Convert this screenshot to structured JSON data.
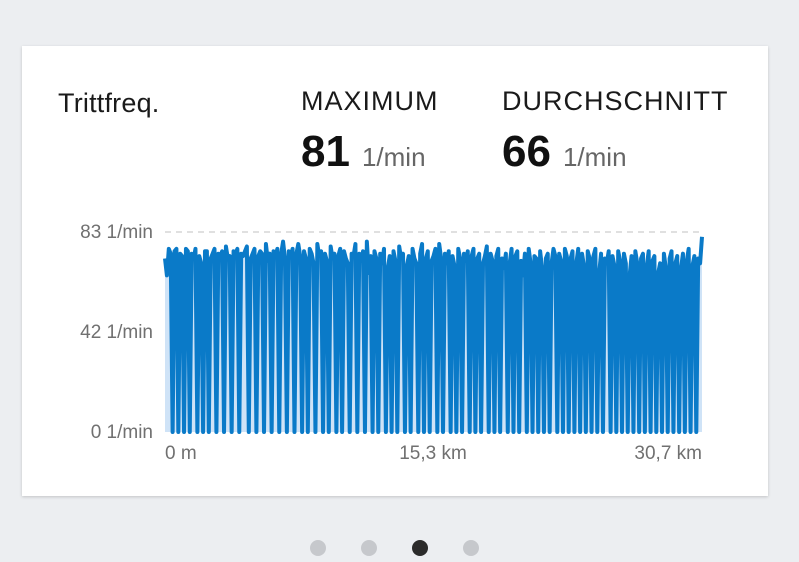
{
  "card": {
    "title": "Trittfreq.",
    "maximum": {
      "label": "MAXIMUM",
      "value": "81",
      "unit": "1/min"
    },
    "average": {
      "label": "DURCHSCHNITT",
      "value": "66",
      "unit": "1/min"
    }
  },
  "chart_data": {
    "type": "area",
    "y_tick_labels": [
      "83 1/min",
      "42 1/min",
      "0 1/min"
    ],
    "x_tick_labels": [
      "0 m",
      "15,3 km",
      "30,7 km"
    ],
    "ylim": [
      0,
      83
    ],
    "xlim_km": [
      0,
      30.7
    ],
    "grid": "dashed top line",
    "colors": {
      "line": "#0a7ac8",
      "fill": "#cfe3f7"
    },
    "series": [
      {
        "values": [
          72,
          65,
          76,
          74,
          0,
          75,
          76,
          0,
          74,
          73,
          0,
          76,
          75,
          0,
          74,
          72,
          76,
          0,
          73,
          70,
          0,
          75,
          75,
          0,
          72,
          74,
          76,
          0,
          74,
          73,
          75,
          0,
          77,
          72,
          73,
          0,
          75,
          74,
          76,
          0,
          74,
          73,
          75,
          77,
          0,
          72,
          74,
          76,
          0,
          73,
          75,
          74,
          0,
          78,
          71,
          74,
          0,
          75,
          73,
          76,
          0,
          74,
          79,
          72,
          0,
          75,
          73,
          76,
          0,
          74,
          78,
          73,
          0,
          75,
          72,
          0,
          76,
          74,
          70,
          0,
          78,
          73,
          75,
          0,
          74,
          71,
          0,
          77,
          72,
          74,
          0,
          73,
          76,
          0,
          75,
          72,
          70,
          0,
          74,
          73,
          78,
          0,
          74,
          71,
          75,
          0,
          79,
          66,
          73,
          0,
          75,
          72,
          0,
          74,
          70,
          76,
          0,
          68,
          73,
          0,
          75,
          71,
          0,
          77,
          72,
          74,
          0,
          69,
          73,
          0,
          76,
          72,
          70,
          0,
          74,
          78,
          0,
          72,
          75,
          0,
          71,
          73,
          76,
          0,
          78,
          72,
          0,
          74,
          70,
          75,
          0,
          73,
          69,
          0,
          76,
          72,
          0,
          74,
          71,
          75,
          0,
          73,
          76,
          0,
          72,
          74,
          0,
          70,
          73,
          77,
          0,
          74,
          71,
          0,
          73,
          76,
          0,
          72,
          68,
          74,
          0,
          70,
          76,
          0,
          73,
          75,
          0,
          71,
          65,
          74,
          0,
          76,
          70,
          0,
          73,
          72,
          0,
          75,
          68,
          0,
          72,
          74,
          0,
          70,
          76,
          73,
          0,
          74,
          71,
          0,
          76,
          73,
          0,
          72,
          75,
          0,
          70,
          76,
          0,
          74,
          69,
          0,
          75,
          72,
          0,
          73,
          76,
          0,
          66,
          74,
          0,
          72,
          70,
          75,
          0,
          73,
          69,
          0,
          75,
          71,
          0,
          74,
          70,
          0,
          65,
          73,
          0,
          75,
          70,
          0,
          72,
          74,
          0,
          69,
          75,
          0,
          71,
          73,
          0,
          66,
          70,
          0,
          74,
          68,
          0,
          72,
          75,
          0,
          70,
          73,
          0,
          68,
          74,
          0,
          71,
          76,
          0,
          69,
          73,
          0,
          72,
          70,
          81
        ]
      }
    ]
  },
  "pagination": {
    "count": 4,
    "active_index": 2
  }
}
